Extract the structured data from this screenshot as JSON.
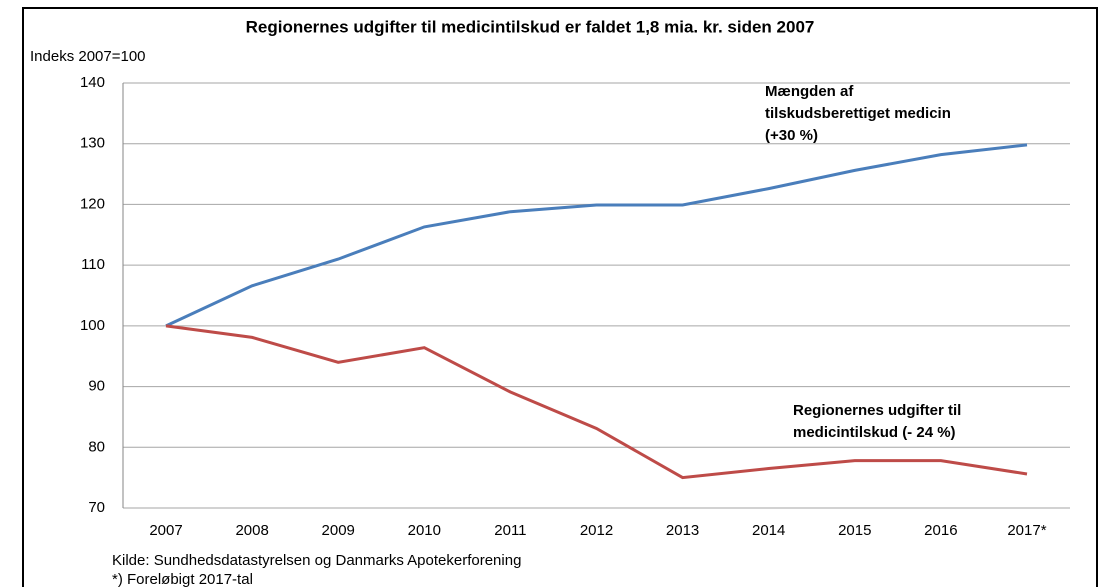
{
  "chart_data": {
    "type": "line",
    "title": "Regionernes udgifter til medicintilskud er faldet 1,8 mia. kr. siden 2007",
    "y_axis_label": "Indeks 2007=100",
    "categories": [
      "2007",
      "2008",
      "2009",
      "2010",
      "2011",
      "2012",
      "2013",
      "2014",
      "2015",
      "2016",
      "2017*"
    ],
    "series": [
      {
        "name": "Mængden af tilskudsberettiget medicin (+30 %)",
        "color": "#4a7ebb",
        "values": [
          100,
          106.6,
          111,
          116.3,
          118.8,
          119.9,
          119.9,
          122.6,
          125.6,
          128.2,
          129.8
        ]
      },
      {
        "name": "Regionernes udgifter til medicintilskud (- 24 %)",
        "color": "#be4b48",
        "values": [
          100,
          98.1,
          94,
          96.4,
          89.1,
          83.1,
          75,
          76.5,
          77.8,
          77.8,
          75.6
        ]
      }
    ],
    "ylim": [
      70,
      140
    ],
    "yticks": [
      70,
      80,
      90,
      100,
      110,
      120,
      130,
      140
    ],
    "grid": true,
    "source": "Kilde: Sundhedsdatastyrelsen og Danmarks Apotekerforening",
    "footnote": "*) Foreløbigt 2017-tal"
  }
}
